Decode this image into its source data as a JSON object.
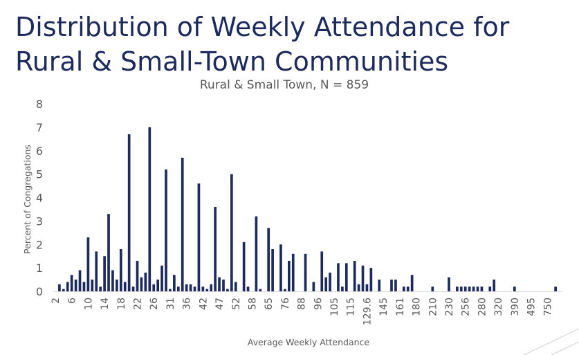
{
  "slide": {
    "title_line1": "Distribution of Weekly Attendance for",
    "title_line2": "Rural & Small-Town Communities"
  },
  "chart_data": {
    "type": "bar",
    "title": "Rural & Small Town, N = 859",
    "xlabel": "Average Weekly Attendance",
    "ylabel": "Percent of Congregations",
    "ylim": [
      0,
      8
    ],
    "yticks": [
      0,
      1,
      2,
      3,
      4,
      5,
      6,
      7,
      8
    ],
    "grid": false,
    "xtick_labels": [
      "2",
      "6",
      "10",
      "14",
      "18",
      "22",
      "26",
      "31",
      "36",
      "42",
      "47",
      "52",
      "58",
      "65",
      "76",
      "88",
      "96",
      "105",
      "115",
      "129.6",
      "145",
      "161",
      "180",
      "210",
      "230",
      "256",
      "280",
      "320",
      "390",
      "495",
      "750"
    ],
    "colors": {
      "bar": "#1c2a5c",
      "text": "#595959",
      "title": "#1c2a5c",
      "axis": "#d9d9d9"
    },
    "values": [
      0,
      0.3,
      0.1,
      0.4,
      0.7,
      0.5,
      0.9,
      0.4,
      2.3,
      0.5,
      1.7,
      0.2,
      1.5,
      3.3,
      0.9,
      0.5,
      1.8,
      0.4,
      6.7,
      0.2,
      1.3,
      0.6,
      0.8,
      7.0,
      0.3,
      0.5,
      1.1,
      5.2,
      0.1,
      0.7,
      0.2,
      5.7,
      0.3,
      0.3,
      0.2,
      4.6,
      0.2,
      0.1,
      0.3,
      3.6,
      0.6,
      0.5,
      0.1,
      5.0,
      0.4,
      0,
      2.1,
      0.2,
      0,
      3.2,
      0.1,
      0,
      2.7,
      1.8,
      0,
      2.0,
      0.1,
      1.3,
      1.6,
      0,
      0,
      1.6,
      0,
      0.4,
      0,
      1.7,
      0.6,
      0.8,
      0,
      1.2,
      0.2,
      1.2,
      0,
      1.3,
      0.3,
      1.1,
      0.3,
      1.0,
      0,
      0.5,
      0,
      0,
      0.5,
      0.5,
      0,
      0.2,
      0.2,
      0.7,
      0,
      0,
      0,
      0,
      0.2,
      0,
      0,
      0,
      0.6,
      0,
      0.2,
      0.2,
      0.2,
      0.2,
      0.2,
      0.2,
      0.2,
      0,
      0.2,
      0.5,
      0,
      0,
      0,
      0,
      0.2,
      0,
      0,
      0,
      0,
      0,
      0,
      0,
      0,
      0,
      0.2,
      0
    ],
    "tick_every": 4
  }
}
